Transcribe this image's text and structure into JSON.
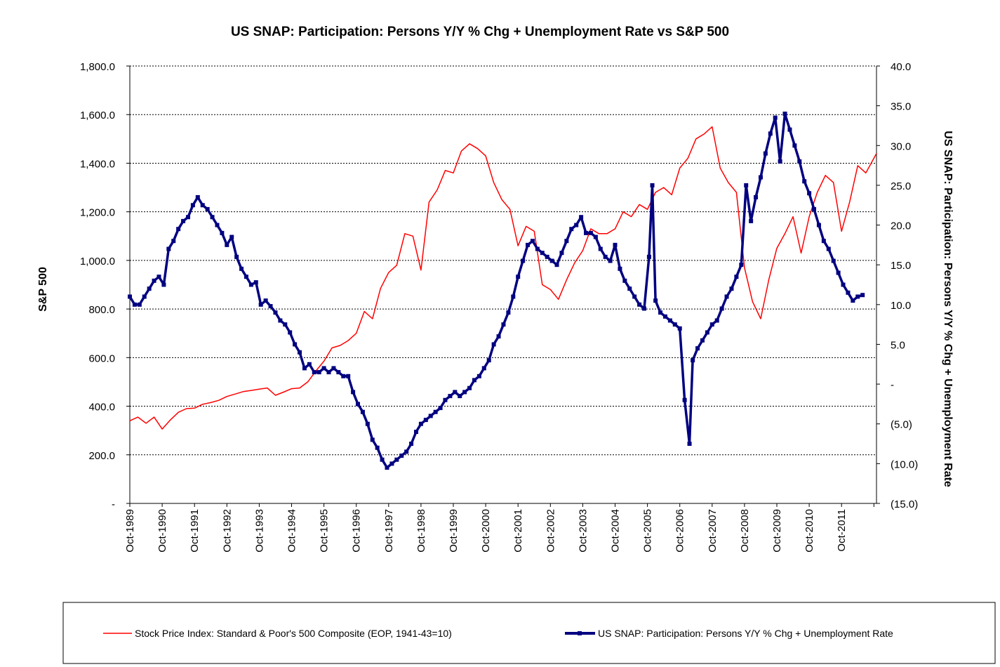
{
  "chart_data": {
    "type": "line",
    "title": "US SNAP: Participation: Persons Y/Y % Chg + Unemployment Rate vs S&P 500",
    "ylabel_left": "S&P 500",
    "ylabel_right": "US SNAP: Participation: Persons Y/Y % Chg + Unemployment Rate",
    "ylim_left": [
      0,
      1800
    ],
    "ylim_right": [
      -15,
      40
    ],
    "yticks_left": [
      "-",
      "200.0",
      "400.0",
      "600.0",
      "800.0",
      "1,000.0",
      "1,200.0",
      "1,400.0",
      "1,600.0",
      "1,800.0"
    ],
    "yticks_right": [
      "(15.0)",
      "(10.0)",
      "(5.0)",
      "-",
      "5.0",
      "10.0",
      "15.0",
      "20.0",
      "25.0",
      "30.0",
      "35.0",
      "40.0"
    ],
    "xlim": [
      1989.75,
      2012.83
    ],
    "x_tick_labels": [
      "Oct-1989",
      "Oct-1990",
      "Oct-1991",
      "Oct-1992",
      "Oct-1993",
      "Oct-1994",
      "Oct-1995",
      "Oct-1996",
      "Oct-1997",
      "Oct-1998",
      "Oct-1999",
      "Oct-2000",
      "Oct-2001",
      "Oct-2002",
      "Oct-2003",
      "Oct-2004",
      "Oct-2005",
      "Oct-2006",
      "Oct-2007",
      "Oct-2008",
      "Oct-2009",
      "Oct-2010",
      "Oct-2011"
    ],
    "grid": "horizontal",
    "legend_position": "bottom",
    "series": [
      {
        "name": "Stock Price Index: Standard & Poor's 500 Composite (EOP, 1941-43=10)",
        "axis": "left",
        "color": "#ff0000",
        "marker": "none",
        "points": [
          [
            1989.75,
            340
          ],
          [
            1990.0,
            355
          ],
          [
            1990.25,
            330
          ],
          [
            1990.5,
            355
          ],
          [
            1990.75,
            306
          ],
          [
            1991.0,
            343
          ],
          [
            1991.25,
            375
          ],
          [
            1991.5,
            390
          ],
          [
            1991.75,
            392
          ],
          [
            1992.0,
            408
          ],
          [
            1992.25,
            415
          ],
          [
            1992.5,
            424
          ],
          [
            1992.75,
            440
          ],
          [
            1993.0,
            450
          ],
          [
            1993.25,
            460
          ],
          [
            1993.5,
            465
          ],
          [
            1993.75,
            470
          ],
          [
            1994.0,
            475
          ],
          [
            1994.25,
            445
          ],
          [
            1994.5,
            458
          ],
          [
            1994.75,
            472
          ],
          [
            1995.0,
            475
          ],
          [
            1995.25,
            500
          ],
          [
            1995.5,
            545
          ],
          [
            1995.75,
            585
          ],
          [
            1996.0,
            640
          ],
          [
            1996.25,
            650
          ],
          [
            1996.5,
            670
          ],
          [
            1996.75,
            700
          ],
          [
            1997.0,
            790
          ],
          [
            1997.25,
            760
          ],
          [
            1997.5,
            885
          ],
          [
            1997.75,
            950
          ],
          [
            1998.0,
            980
          ],
          [
            1998.25,
            1110
          ],
          [
            1998.5,
            1100
          ],
          [
            1998.75,
            960
          ],
          [
            1999.0,
            1240
          ],
          [
            1999.25,
            1290
          ],
          [
            1999.5,
            1370
          ],
          [
            1999.75,
            1360
          ],
          [
            2000.0,
            1450
          ],
          [
            2000.25,
            1480
          ],
          [
            2000.5,
            1460
          ],
          [
            2000.75,
            1430
          ],
          [
            2001.0,
            1320
          ],
          [
            2001.25,
            1250
          ],
          [
            2001.5,
            1210
          ],
          [
            2001.75,
            1060
          ],
          [
            2002.0,
            1140
          ],
          [
            2002.25,
            1120
          ],
          [
            2002.5,
            900
          ],
          [
            2002.75,
            880
          ],
          [
            2003.0,
            840
          ],
          [
            2003.25,
            920
          ],
          [
            2003.5,
            990
          ],
          [
            2003.75,
            1040
          ],
          [
            2004.0,
            1130
          ],
          [
            2004.25,
            1110
          ],
          [
            2004.5,
            1110
          ],
          [
            2004.75,
            1130
          ],
          [
            2005.0,
            1200
          ],
          [
            2005.25,
            1180
          ],
          [
            2005.5,
            1230
          ],
          [
            2005.75,
            1210
          ],
          [
            2006.0,
            1280
          ],
          [
            2006.25,
            1300
          ],
          [
            2006.5,
            1270
          ],
          [
            2006.75,
            1380
          ],
          [
            2007.0,
            1420
          ],
          [
            2007.25,
            1500
          ],
          [
            2007.5,
            1520
          ],
          [
            2007.75,
            1550
          ],
          [
            2008.0,
            1380
          ],
          [
            2008.25,
            1320
          ],
          [
            2008.5,
            1280
          ],
          [
            2008.75,
            970
          ],
          [
            2009.0,
            830
          ],
          [
            2009.25,
            760
          ],
          [
            2009.5,
            920
          ],
          [
            2009.75,
            1050
          ],
          [
            2010.0,
            1110
          ],
          [
            2010.25,
            1180
          ],
          [
            2010.5,
            1030
          ],
          [
            2010.75,
            1180
          ],
          [
            2011.0,
            1280
          ],
          [
            2011.25,
            1350
          ],
          [
            2011.5,
            1320
          ],
          [
            2011.75,
            1120
          ],
          [
            2012.0,
            1240
          ],
          [
            2012.25,
            1390
          ],
          [
            2012.5,
            1360
          ],
          [
            2012.83,
            1440
          ]
        ]
      },
      {
        "name": "US SNAP: Participation: Persons Y/Y % Chg + Unemployment Rate",
        "axis": "right",
        "color": "#000080",
        "marker": "square",
        "points": [
          [
            1989.75,
            11.0
          ],
          [
            1989.9,
            10.0
          ],
          [
            1990.05,
            10.0
          ],
          [
            1990.2,
            11.0
          ],
          [
            1990.35,
            12.0
          ],
          [
            1990.5,
            13.0
          ],
          [
            1990.65,
            13.5
          ],
          [
            1990.8,
            12.5
          ],
          [
            1990.95,
            17.0
          ],
          [
            1991.1,
            18.0
          ],
          [
            1991.25,
            19.5
          ],
          [
            1991.4,
            20.5
          ],
          [
            1991.55,
            21.0
          ],
          [
            1991.7,
            22.5
          ],
          [
            1991.85,
            23.5
          ],
          [
            1992.0,
            22.5
          ],
          [
            1992.15,
            22.0
          ],
          [
            1992.3,
            21.0
          ],
          [
            1992.45,
            20.0
          ],
          [
            1992.6,
            19.0
          ],
          [
            1992.75,
            17.5
          ],
          [
            1992.9,
            18.5
          ],
          [
            1993.05,
            16.0
          ],
          [
            1993.2,
            14.5
          ],
          [
            1993.35,
            13.5
          ],
          [
            1993.5,
            12.5
          ],
          [
            1993.65,
            12.8
          ],
          [
            1993.8,
            10.0
          ],
          [
            1993.95,
            10.5
          ],
          [
            1994.1,
            9.8
          ],
          [
            1994.25,
            9.0
          ],
          [
            1994.4,
            8.0
          ],
          [
            1994.55,
            7.5
          ],
          [
            1994.7,
            6.5
          ],
          [
            1994.85,
            5.0
          ],
          [
            1995.0,
            4.0
          ],
          [
            1995.15,
            2.0
          ],
          [
            1995.3,
            2.5
          ],
          [
            1995.45,
            1.5
          ],
          [
            1995.6,
            1.5
          ],
          [
            1995.75,
            2.0
          ],
          [
            1995.9,
            1.5
          ],
          [
            1996.05,
            2.0
          ],
          [
            1996.2,
            1.5
          ],
          [
            1996.35,
            1.0
          ],
          [
            1996.5,
            1.0
          ],
          [
            1996.65,
            -1.0
          ],
          [
            1996.8,
            -2.5
          ],
          [
            1996.95,
            -3.5
          ],
          [
            1997.1,
            -5.0
          ],
          [
            1997.25,
            -7.0
          ],
          [
            1997.4,
            -8.0
          ],
          [
            1997.55,
            -9.5
          ],
          [
            1997.7,
            -10.5
          ],
          [
            1997.85,
            -10.0
          ],
          [
            1998.0,
            -9.5
          ],
          [
            1998.15,
            -9.0
          ],
          [
            1998.3,
            -8.5
          ],
          [
            1998.45,
            -7.5
          ],
          [
            1998.6,
            -6.0
          ],
          [
            1998.75,
            -5.0
          ],
          [
            1998.9,
            -4.5
          ],
          [
            1999.05,
            -4.0
          ],
          [
            1999.2,
            -3.5
          ],
          [
            1999.35,
            -3.0
          ],
          [
            1999.5,
            -2.0
          ],
          [
            1999.65,
            -1.5
          ],
          [
            1999.8,
            -1.0
          ],
          [
            1999.95,
            -1.5
          ],
          [
            2000.1,
            -1.0
          ],
          [
            2000.25,
            -0.5
          ],
          [
            2000.4,
            0.5
          ],
          [
            2000.55,
            1.0
          ],
          [
            2000.7,
            2.0
          ],
          [
            2000.85,
            3.0
          ],
          [
            2001.0,
            5.0
          ],
          [
            2001.15,
            6.0
          ],
          [
            2001.3,
            7.5
          ],
          [
            2001.45,
            9.0
          ],
          [
            2001.6,
            11.0
          ],
          [
            2001.75,
            13.5
          ],
          [
            2001.9,
            15.5
          ],
          [
            2002.05,
            17.5
          ],
          [
            2002.2,
            18.0
          ],
          [
            2002.35,
            17.0
          ],
          [
            2002.5,
            16.5
          ],
          [
            2002.65,
            16.0
          ],
          [
            2002.8,
            15.5
          ],
          [
            2002.95,
            15.0
          ],
          [
            2003.1,
            16.5
          ],
          [
            2003.25,
            18.0
          ],
          [
            2003.4,
            19.5
          ],
          [
            2003.55,
            20.0
          ],
          [
            2003.7,
            21.0
          ],
          [
            2003.85,
            19.0
          ],
          [
            2004.0,
            19.0
          ],
          [
            2004.15,
            18.5
          ],
          [
            2004.3,
            17.0
          ],
          [
            2004.45,
            16.0
          ],
          [
            2004.6,
            15.5
          ],
          [
            2004.75,
            17.5
          ],
          [
            2004.9,
            14.5
          ],
          [
            2005.05,
            13.0
          ],
          [
            2005.2,
            12.0
          ],
          [
            2005.35,
            11.0
          ],
          [
            2005.5,
            10.0
          ],
          [
            2005.65,
            9.5
          ],
          [
            2005.8,
            16.0
          ],
          [
            2005.9,
            25.0
          ],
          [
            2006.0,
            10.5
          ],
          [
            2006.15,
            9.0
          ],
          [
            2006.3,
            8.5
          ],
          [
            2006.45,
            8.0
          ],
          [
            2006.6,
            7.5
          ],
          [
            2006.75,
            7.0
          ],
          [
            2006.9,
            -2.0
          ],
          [
            2007.05,
            -7.5
          ],
          [
            2007.15,
            3.0
          ],
          [
            2007.3,
            4.5
          ],
          [
            2007.45,
            5.5
          ],
          [
            2007.6,
            6.5
          ],
          [
            2007.75,
            7.5
          ],
          [
            2007.9,
            8.0
          ],
          [
            2008.05,
            9.5
          ],
          [
            2008.2,
            11.0
          ],
          [
            2008.35,
            12.0
          ],
          [
            2008.5,
            13.5
          ],
          [
            2008.65,
            15.0
          ],
          [
            2008.8,
            25.0
          ],
          [
            2008.95,
            20.5
          ],
          [
            2009.1,
            23.5
          ],
          [
            2009.25,
            26.0
          ],
          [
            2009.4,
            29.0
          ],
          [
            2009.55,
            31.5
          ],
          [
            2009.7,
            33.5
          ],
          [
            2009.85,
            28.0
          ],
          [
            2010.0,
            34.0
          ],
          [
            2010.15,
            32.0
          ],
          [
            2010.3,
            30.0
          ],
          [
            2010.45,
            28.0
          ],
          [
            2010.6,
            25.5
          ],
          [
            2010.75,
            24.0
          ],
          [
            2010.9,
            22.0
          ],
          [
            2011.05,
            20.0
          ],
          [
            2011.2,
            18.0
          ],
          [
            2011.35,
            17.0
          ],
          [
            2011.5,
            15.5
          ],
          [
            2011.65,
            14.0
          ],
          [
            2011.8,
            12.5
          ],
          [
            2011.95,
            11.5
          ],
          [
            2012.1,
            10.5
          ],
          [
            2012.25,
            11.0
          ],
          [
            2012.4,
            11.2
          ]
        ]
      }
    ]
  }
}
